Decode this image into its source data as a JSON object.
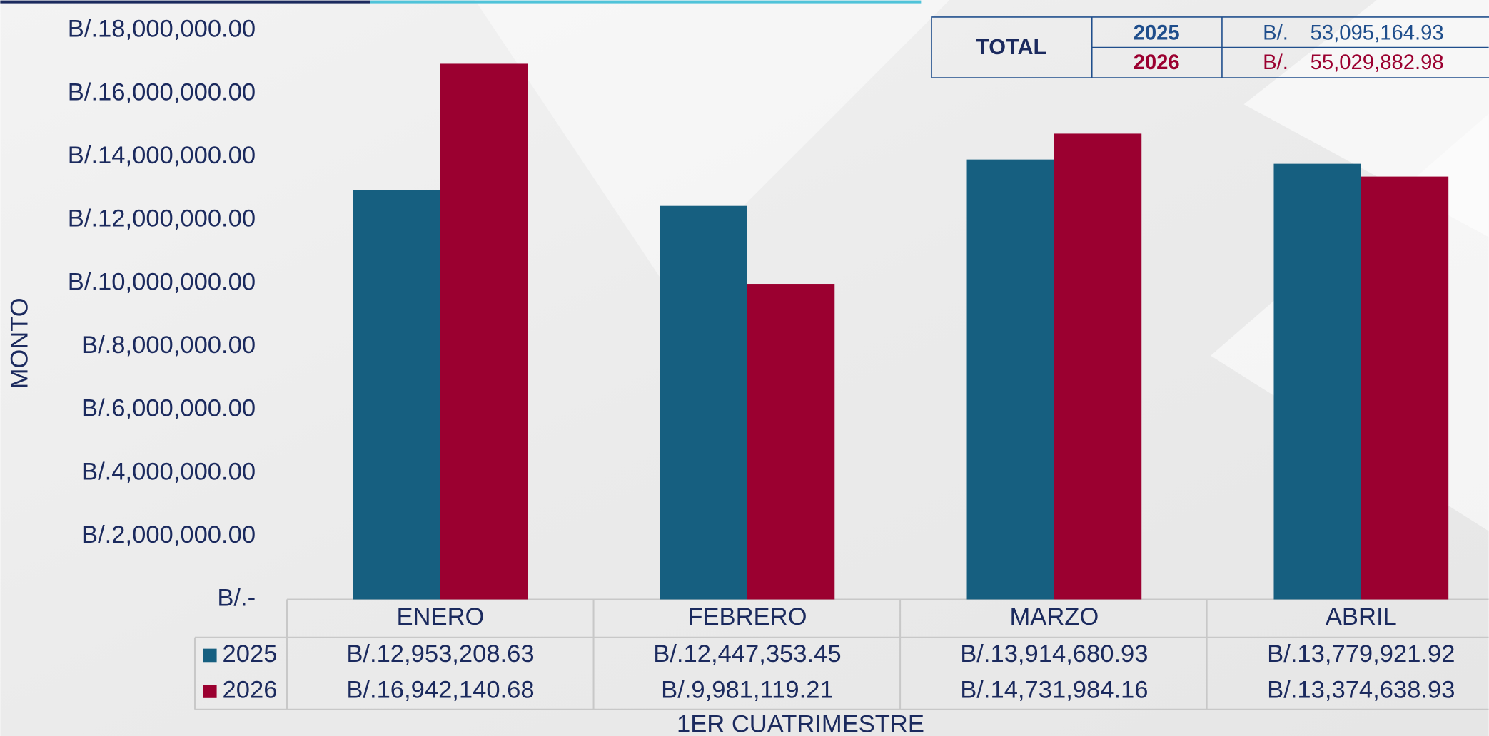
{
  "chart_data": {
    "type": "bar",
    "y_axis_label": "MONTO",
    "x_axis_label": "1ER CUATRIMESTRE",
    "categories": [
      "ENERO",
      "FEBRERO",
      "MARZO",
      "ABRIL"
    ],
    "series": [
      {
        "name": "2025",
        "color": "#165f80",
        "values": [
          12953208.63,
          12447353.45,
          13914680.93,
          13779921.92
        ],
        "value_labels": [
          "B/.12,953,208.63",
          "B/.12,447,353.45",
          "B/.13,914,680.93",
          "B/.13,779,921.92"
        ]
      },
      {
        "name": "2026",
        "color": "#9b0030",
        "values": [
          16942140.68,
          9981119.21,
          14731984.16,
          13374638.93
        ],
        "value_labels": [
          "B/.16,942,140.68",
          "B/.9,981,119.21",
          "B/.14,731,984.16",
          "B/.13,374,638.93"
        ]
      }
    ],
    "ylim": [
      0,
      18000000
    ],
    "yticks": [
      {
        "value": 0,
        "label": "B/.-"
      },
      {
        "value": 2000000,
        "label": "B/.2,000,000.00"
      },
      {
        "value": 4000000,
        "label": "B/.4,000,000.00"
      },
      {
        "value": 6000000,
        "label": "B/.6,000,000.00"
      },
      {
        "value": 8000000,
        "label": "B/.8,000,000.00"
      },
      {
        "value": 10000000,
        "label": "B/.10,000,000.00"
      },
      {
        "value": 12000000,
        "label": "B/.12,000,000.00"
      },
      {
        "value": 14000000,
        "label": "B/.14,000,000.00"
      },
      {
        "value": 16000000,
        "label": "B/.16,000,000.00"
      },
      {
        "value": 18000000,
        "label": "B/.18,000,000.00"
      }
    ],
    "grid": false
  },
  "total_table": {
    "label": "TOTAL",
    "rows": [
      {
        "year": "2025",
        "currency": "B/.",
        "amount": "53,095,164.93"
      },
      {
        "year": "2026",
        "currency": "B/.",
        "amount": "55,029,882.98"
      }
    ]
  }
}
